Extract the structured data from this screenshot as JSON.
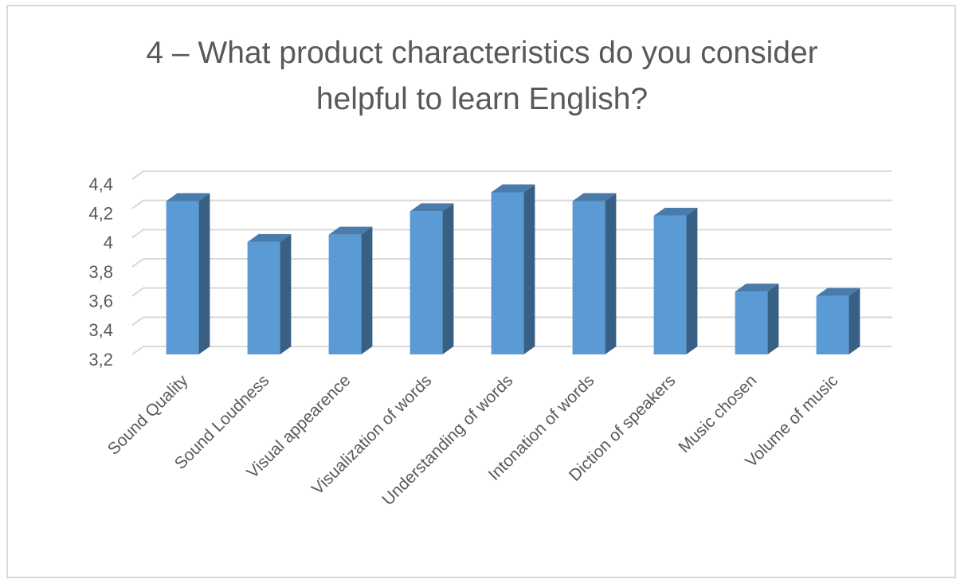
{
  "chart_data": {
    "type": "bar3d",
    "title": "4 – What product characteristics do you consider helpful to learn English?",
    "categories": [
      "Sound Quality",
      "Sound Loudness",
      "Visual appearence",
      "Visualization of words",
      "Understanding of words",
      "Intonation of words",
      "Diction of speakers",
      "Music chosen",
      "Volume of music"
    ],
    "values": [
      4.25,
      3.97,
      4.02,
      4.18,
      4.31,
      4.25,
      4.15,
      3.63,
      3.6
    ],
    "color": "#5b9bd5",
    "ylim": [
      3.2,
      4.4
    ],
    "yticks": [
      {
        "value": 3.2,
        "label": "3,2"
      },
      {
        "value": 3.4,
        "label": "3,4"
      },
      {
        "value": 3.6,
        "label": "3,6"
      },
      {
        "value": 3.8,
        "label": "3,8"
      },
      4,
      {
        "value": 4.2,
        "label": "4,2"
      },
      {
        "value": 4.4,
        "label": "4,4"
      }
    ],
    "grid": true
  }
}
